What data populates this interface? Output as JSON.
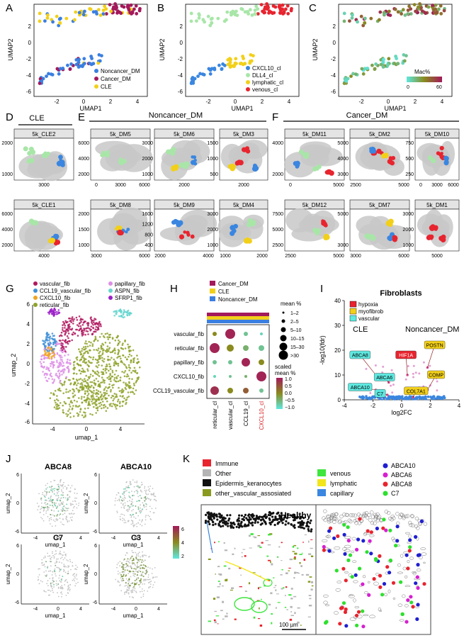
{
  "colors": {
    "noncancer": "#3b7fe0",
    "cancer": "#a3195b",
    "cle": "#f2d01a",
    "cxcl10_cl": "#3a86e0",
    "dll4_cl": "#a8e6a8",
    "lymphatic_cl": "#f2d01a",
    "venous_cl": "#e8242f",
    "tissue_gray": "#c8c8c8",
    "mac_low": "#5ee8e0",
    "mac_mid": "#8a8a1e",
    "mac_high": "#a3195b",
    "vascular_fib": "#b0195e",
    "ccl19_vascular_fib": "#3f8fd8",
    "cxcl10_fib": "#f0a422",
    "reticular_fib": "#8fa22a",
    "papillary_fib": "#dd8ee6",
    "aspn_fib": "#67d6d0",
    "sfrp1_fib": "#9b20c8",
    "immune": "#e8242f",
    "other": "#b5b5b5",
    "epidermis": "#111111",
    "other_vascular": "#8a9a1e",
    "venous": "#3ee63e",
    "lymphatic": "#f2e61a",
    "capillary": "#3a86e0",
    "abca10": "#1f1fd0",
    "abca6": "#d61fd0",
    "abca8": "#e8242f",
    "c7": "#2de02d"
  },
  "panel_labels": [
    "A",
    "B",
    "C",
    "D",
    "E",
    "F",
    "G",
    "H",
    "I",
    "J",
    "K"
  ],
  "panelA": {
    "ylabel": "UMAP2",
    "xlabel": "UMAP1",
    "legend": [
      "Noncancer_DM",
      "Cancer_DM",
      "CLE"
    ],
    "yticks": [
      "2",
      "0",
      "-2",
      "-4",
      "-6"
    ],
    "xticks": [
      "-2",
      "0",
      "2",
      "4"
    ]
  },
  "panelB": {
    "ylabel": "UMAP2",
    "xlabel": "UMAP1",
    "legend": [
      "CXCL10_cl",
      "DLL4_cl",
      "lymphatic_cl",
      "venous_cl"
    ],
    "yticks": [
      "2",
      "0",
      "-2",
      "-4",
      "-6"
    ],
    "xticks": [
      "-2",
      "0",
      "2",
      "4"
    ]
  },
  "panelC": {
    "ylabel": "UMAP2",
    "xlabel": "UMAP1",
    "legend_title": "Mac%",
    "legend_ticks": [
      "0",
      "60"
    ],
    "yticks": [
      "2",
      "0",
      "-2",
      "-4",
      "-6"
    ],
    "xticks": [
      "-2",
      "0",
      "2",
      "4"
    ]
  },
  "groups": {
    "D": "CLE",
    "E": "Noncancer_DM",
    "F": "Cancer_DM"
  },
  "samples": [
    {
      "title": "5k_CLE2",
      "yt": [
        "2000",
        "1000"
      ],
      "xt": [
        "3000"
      ]
    },
    {
      "title": "5k_DM5",
      "yt": [
        "6000",
        "4000",
        "2000"
      ],
      "xt": [
        "0",
        "3000",
        "6000"
      ]
    },
    {
      "title": "5k_DM6",
      "yt": [
        "3000",
        "2000",
        "1000"
      ],
      "xt": [
        "2000"
      ]
    },
    {
      "title": "5k_DM3",
      "yt": [
        "1500",
        "1000",
        "500"
      ],
      "xt": [
        "2000"
      ]
    },
    {
      "title": "5k_DM11",
      "yt": [
        "4000",
        "2000"
      ],
      "xt": [
        "0",
        "5000"
      ]
    },
    {
      "title": "5k_DM2",
      "yt": [
        "5000",
        "4000",
        "3000"
      ],
      "xt": [
        "2500",
        "5000"
      ]
    },
    {
      "title": "5k_DM10",
      "yt": [
        "750",
        "500",
        "250"
      ],
      "xt": [
        "0",
        "3000",
        "6000"
      ]
    },
    {
      "title": "5k_CLE1",
      "yt": [
        "6000",
        "4000",
        "2000"
      ],
      "xt": [
        "4000"
      ]
    },
    {
      "title": "5k_DM8",
      "yt": [
        "2000",
        "1500",
        "1000"
      ],
      "xt": [
        "3000",
        "6000"
      ]
    },
    {
      "title": "5k_DM9",
      "yt": [
        "1600",
        "1200",
        "800",
        "400"
      ],
      "xt": [
        "2000",
        "4000"
      ]
    },
    {
      "title": "5k_DM4",
      "yt": [
        "3000",
        "2000",
        "1000"
      ],
      "xt": [
        "1000",
        "2000"
      ]
    },
    {
      "title": "5k_DM12",
      "yt": [
        "7500",
        "5000",
        "2500"
      ],
      "xt": [
        "2500",
        "5000"
      ]
    },
    {
      "title": "5k_DM7",
      "yt": [
        "5000",
        "3000"
      ],
      "xt": [
        "3000",
        "6000"
      ]
    },
    {
      "title": "5k_DM1",
      "yt": [
        "3000",
        "2000",
        "1000"
      ],
      "xt": [
        "5000"
      ]
    }
  ],
  "panelG": {
    "legend": [
      "vascular_fib",
      "CCL19_vascular_fib",
      "CXCL10_fib",
      "reticular_fib",
      "papillary_fib",
      "ASPN_fib",
      "SFRP1_fib"
    ],
    "ylabel": "umap_2",
    "xlabel": "umap_1",
    "yticks": [
      "6",
      "4",
      "2",
      "0",
      "-2",
      "-4",
      "-6"
    ],
    "xticks": [
      "-4",
      "0",
      "4"
    ]
  },
  "panelH": {
    "group_legend": [
      "Cancer_DM",
      "CLE",
      "Noncancer_DM"
    ],
    "rows": [
      "vascular_fib",
      "reticular_fib",
      "papillary_fib",
      "CXCL10_fib",
      "CCL19_vascular_fib"
    ],
    "cols": [
      "reticular_cl",
      "vascular_cl",
      "CCL19_cl",
      "CXCL10_cl"
    ],
    "size_title": "mean %",
    "size_labels": [
      "1–2",
      "2–5",
      "5–10",
      "10–15",
      "15–30",
      ">30"
    ],
    "color_title_1": "scaled",
    "color_title_2": "mean %",
    "color_ticks": [
      "1.0",
      "0.5",
      "0.0",
      "−0.5",
      "−1.0"
    ]
  },
  "chart_data": {
    "type": "scatter",
    "title": "Fibroblasts",
    "xlabel": "log2FC",
    "ylabel": "-log10(fdr)",
    "xlim": [
      -4,
      4
    ],
    "ylim": [
      0,
      40
    ],
    "xticks": [
      "-4",
      "-2",
      "0",
      "2",
      "4"
    ],
    "yticks": [
      "0",
      "10",
      "20",
      "30",
      "40"
    ],
    "left_group": "CLE",
    "right_group": "Noncancer_DM",
    "legend": [
      "hypoxia",
      "myofibrob",
      "vascular"
    ],
    "labeled_points": [
      {
        "label": "ABCA8",
        "x": -1.8,
        "y": 10,
        "category": "vascular"
      },
      {
        "label": "ABCA6",
        "x": -0.9,
        "y": 7,
        "category": "vascular"
      },
      {
        "label": "ABCA10",
        "x": -1.8,
        "y": 4,
        "category": "vascular"
      },
      {
        "label": "C7",
        "x": -1.0,
        "y": 2,
        "category": "vascular"
      },
      {
        "label": "HIF1A",
        "x": 0.4,
        "y": 10,
        "category": "hypoxia"
      },
      {
        "label": "POSTN",
        "x": 1.8,
        "y": 13,
        "category": "myofibrob"
      },
      {
        "label": "COMP",
        "x": 1.8,
        "y": 4,
        "category": "myofibrob"
      },
      {
        "label": "COL7A1",
        "x": 0.8,
        "y": 1,
        "category": "myofibrob"
      }
    ]
  },
  "panelJ": {
    "titles": [
      "ABCA8",
      "ABCA10",
      "C7",
      "C3"
    ],
    "ylabel": "umap_2",
    "xlabel": "umap_1",
    "yticks": [
      "6",
      "4",
      "2",
      "0",
      "-2",
      "-4",
      "-6"
    ],
    "xticks": [
      "-4",
      "0",
      "4"
    ],
    "colorbar": [
      "6",
      "4",
      "2"
    ]
  },
  "panelK": {
    "legend_left": [
      "Immune",
      "Other",
      "Epidermis_keranocytes",
      "other_vascular_assosiated"
    ],
    "legend_mid": [
      "venous",
      "lymphatic",
      "capillary"
    ],
    "legend_right": [
      "ABCA10",
      "ABCA6",
      "ABCA8",
      "C7"
    ],
    "title": "Healthy",
    "scale": "100 µm"
  }
}
